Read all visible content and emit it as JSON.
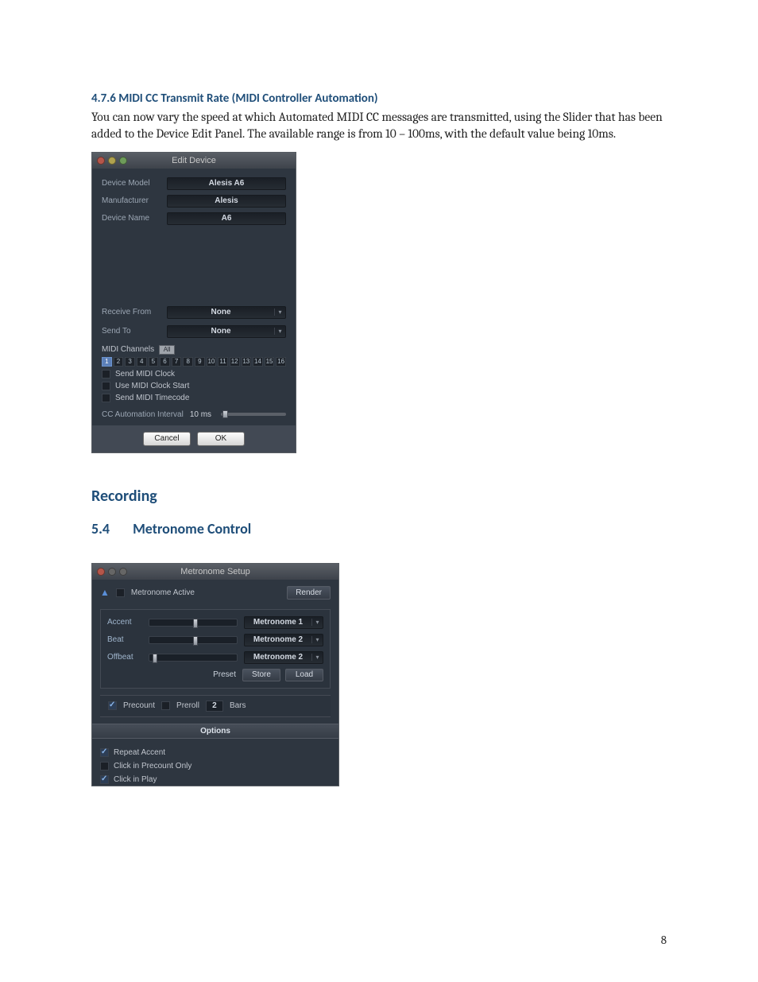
{
  "headings": {
    "h476": "4.7.6 MIDI CC Transmit Rate (MIDI Controller Automation)",
    "recording": "Recording",
    "h54_num": "5.4",
    "h54_title": "Metronome Control"
  },
  "body_para": "You can now vary the speed at which Automated MIDI CC messages are transmitted, using the Slider that has been added to the Device Edit Panel. The available range is from 10 – 100ms, with the default value being 10ms.",
  "page_number": "8",
  "edit_device": {
    "title": "Edit Device",
    "labels": {
      "device_model": "Device Model",
      "manufacturer": "Manufacturer",
      "device_name": "Device Name",
      "receive_from": "Receive From",
      "send_to": "Send To",
      "midi_channels": "MIDI Channels",
      "all_btn": "All",
      "send_midi_clock": "Send MIDI Clock",
      "use_midi_clock_start": "Use MIDI Clock Start",
      "send_midi_timecode": "Send MIDI Timecode",
      "cc_automation_interval": "CC Automation Interval"
    },
    "values": {
      "device_model": "Alesis A6",
      "manufacturer": "Alesis",
      "device_name": "A6",
      "receive_from": "None",
      "send_to": "None",
      "cc_interval": "10 ms"
    },
    "channels": [
      "1",
      "2",
      "3",
      "4",
      "5",
      "6",
      "7",
      "8",
      "9",
      "10",
      "11",
      "12",
      "13",
      "14",
      "15",
      "16"
    ],
    "active_channel_index": 0,
    "cc_slider_pos_pct": 2,
    "buttons": {
      "cancel": "Cancel",
      "ok": "OK"
    }
  },
  "metronome": {
    "title": "Metronome Setup",
    "active_label": "Metronome Active",
    "render": "Render",
    "rows": {
      "accent": "Accent",
      "beat": "Beat",
      "offbeat": "Offbeat"
    },
    "slider_positions_pct": {
      "accent": 50,
      "beat": 50,
      "offbeat": 4
    },
    "dropdowns": {
      "accent": "Metronome 1",
      "beat": "Metronome 2",
      "offbeat": "Metronome 2"
    },
    "preset_lbl": "Preset",
    "store": "Store",
    "load": "Load",
    "precount_lbl": "Precount",
    "preroll_lbl": "Preroll",
    "precount_val": "2",
    "bars_lbl": "Bars",
    "options_hdr": "Options",
    "options": {
      "repeat_accent": "Repeat Accent",
      "click_precount_only": "Click in Precount Only",
      "click_in_play": "Click in Play"
    },
    "checked": {
      "precount": true,
      "preroll": false,
      "repeat_accent": true,
      "click_precount_only": false,
      "click_in_play": true
    }
  },
  "colors": {
    "heading": "#1f4e79",
    "panel_bg": "#2e3640"
  }
}
